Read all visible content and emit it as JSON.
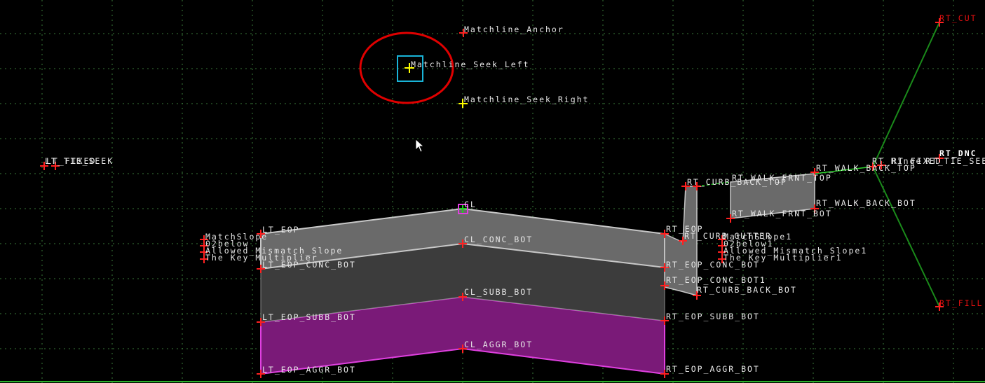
{
  "labels": {
    "matchline_anchor": "Matchline_Anchor",
    "matchline_seek_left": "Matchline_Seek_Left",
    "matchline_seek_right": "Matchline_Seek_Right",
    "lt_tie_seek": "LT_TIE_SEEK",
    "lt_fixed": "LT_FIXED",
    "cl": "CL",
    "cl_conc_bot": "CL_CONC_BOT",
    "cl_subb_bot": "CL_SUBB_BOT",
    "cl_aggr_bot": "CL_AGGR_BOT",
    "lt_eop": "LT_EOP",
    "lt_eop_conc_bot": "LT_EOP_CONC_BOT",
    "lt_eop_subb_bot": "LT_EOP_SUBB_BOT",
    "lt_eop_aggr_bot": "LT_EOP_AGGR_BOT",
    "rt_eop": "RT_EOP",
    "rt_eop_conc_bot": "RT_EOP_CONC_BOT",
    "rt_eop_conc_bot1": "RT_EOP_CONC_BOT1",
    "rt_eop_subb_bot": "RT_EOP_SUBB_BOT",
    "rt_eop_aggr_bot": "RT_EOP_AGGR_BOT",
    "rt_curb_gutter": "RT_CURB_GUTTER",
    "rt_curb_back_top": "RT_CURB_BACK_TOP",
    "rt_curb_back_bot": "RT_CURB_BACK_BOT",
    "rt_walk_frnt_top": "RT_WALK_FRNT_TOP",
    "rt_walk_frnt_bot": "RT_WALK_FRNT_BOT",
    "rt_walk_back_top": "RT_WALK_BACK_TOP",
    "rt_walk_back_bot": "RT_WALK_BACK_BOT",
    "rt_hinge": "RT_Hinge",
    "rt_fixed": "RT_FIXED",
    "rt_tie_seek": "RT_TIE_SEEK",
    "rt_dnc": "RT_DNC",
    "rt_cut": "RT_CUT",
    "rt_fill": "RT_FILL",
    "lt_match_slope": "MatchSlope",
    "lt_2below": "02below",
    "lt_allowed_mismatch": "Allowed_Mismatch_Slope",
    "lt_key_multiplier": "The Key Multiplier",
    "rt_match_slope": "MatchSlope1",
    "rt_2below": "02below1",
    "rt_allowed_mismatch": "Allowed_Mismatch_Slope1",
    "rt_key_multiplier": "The Key Multiplier1"
  },
  "colors": {
    "background": "#000000",
    "grid": "#3a7a3a",
    "point_marker": "#ff2020",
    "seek_marker": "#ffff00",
    "selection_box": "#19b4d8",
    "highlight_circle": "#e00000",
    "concrete_fill": "#6a6a6a",
    "subbase_fill": "#3c3c3c",
    "aggregate_fill": "#7a1a78",
    "aggregate_edge": "#e040e0",
    "slope_line": "#1a8a1a",
    "walk_link": "#2fd12f"
  }
}
